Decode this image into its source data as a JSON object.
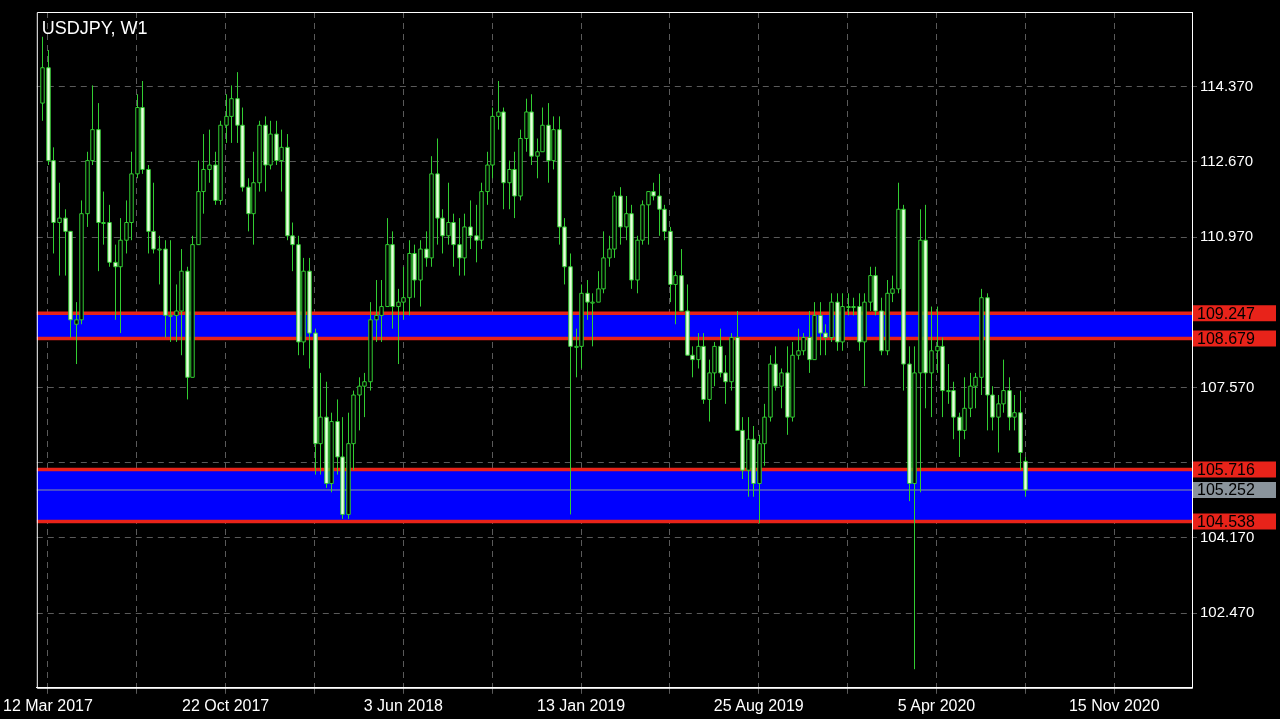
{
  "chart_data": {
    "type": "candlestick",
    "title": "USDJPY, W1",
    "x": [
      "2017-03-05",
      "2017-03-12",
      "2017-03-19",
      "2017-03-26",
      "2017-04-02",
      "2017-04-09",
      "2017-04-16",
      "2017-04-23",
      "2017-04-30",
      "2017-05-07",
      "2017-05-14",
      "2017-05-21",
      "2017-05-28",
      "2017-06-04",
      "2017-06-11",
      "2017-06-18",
      "2017-06-25",
      "2017-07-02",
      "2017-07-09",
      "2017-07-16",
      "2017-07-23",
      "2017-07-30",
      "2017-08-06",
      "2017-08-13",
      "2017-08-20",
      "2017-08-27",
      "2017-09-03",
      "2017-09-10",
      "2017-09-17",
      "2017-09-24",
      "2017-10-01",
      "2017-10-08",
      "2017-10-15",
      "2017-10-22",
      "2017-10-29",
      "2017-11-05",
      "2017-11-12",
      "2017-11-19",
      "2017-11-26",
      "2017-12-03",
      "2017-12-10",
      "2017-12-17",
      "2017-12-24",
      "2017-12-31",
      "2018-01-07",
      "2018-01-14",
      "2018-01-21",
      "2018-01-28",
      "2018-02-04",
      "2018-02-11",
      "2018-02-18",
      "2018-02-25",
      "2018-03-04",
      "2018-03-11",
      "2018-03-18",
      "2018-03-25",
      "2018-04-01",
      "2018-04-08",
      "2018-04-15",
      "2018-04-22",
      "2018-04-29",
      "2018-05-06",
      "2018-05-13",
      "2018-05-20",
      "2018-05-27",
      "2018-06-03",
      "2018-06-10",
      "2018-06-17",
      "2018-06-24",
      "2018-07-01",
      "2018-07-08",
      "2018-07-15",
      "2018-07-22",
      "2018-07-29",
      "2018-08-05",
      "2018-08-12",
      "2018-08-19",
      "2018-08-26",
      "2018-09-02",
      "2018-09-09",
      "2018-09-16",
      "2018-09-23",
      "2018-09-30",
      "2018-10-07",
      "2018-10-14",
      "2018-10-21",
      "2018-10-28",
      "2018-11-04",
      "2018-11-11",
      "2018-11-18",
      "2018-11-25",
      "2018-12-02",
      "2018-12-09",
      "2018-12-16",
      "2018-12-23",
      "2018-12-30",
      "2019-01-06",
      "2019-01-13",
      "2019-01-20",
      "2019-01-27",
      "2019-02-03",
      "2019-02-10",
      "2019-02-17",
      "2019-02-24",
      "2019-03-03",
      "2019-03-10",
      "2019-03-17",
      "2019-03-24",
      "2019-03-31",
      "2019-04-07",
      "2019-04-14",
      "2019-04-21",
      "2019-04-28",
      "2019-05-05",
      "2019-05-12",
      "2019-05-19",
      "2019-05-26",
      "2019-06-02",
      "2019-06-09",
      "2019-06-16",
      "2019-06-23",
      "2019-06-30",
      "2019-07-07",
      "2019-07-14",
      "2019-07-21",
      "2019-07-28",
      "2019-08-04",
      "2019-08-11",
      "2019-08-18",
      "2019-08-25",
      "2019-09-01",
      "2019-09-08",
      "2019-09-15",
      "2019-09-22",
      "2019-09-29",
      "2019-10-06",
      "2019-10-13",
      "2019-10-20",
      "2019-10-27",
      "2019-11-03",
      "2019-11-10",
      "2019-11-17",
      "2019-11-24",
      "2019-12-01",
      "2019-12-08",
      "2019-12-15",
      "2019-12-22",
      "2019-12-29",
      "2020-01-05",
      "2020-01-12",
      "2020-01-19",
      "2020-01-26",
      "2020-02-02",
      "2020-02-09",
      "2020-02-16",
      "2020-02-23",
      "2020-03-01",
      "2020-03-08",
      "2020-03-15",
      "2020-03-22",
      "2020-03-29",
      "2020-04-05",
      "2020-04-12",
      "2020-04-19",
      "2020-04-26",
      "2020-05-03",
      "2020-05-10",
      "2020-05-17",
      "2020-05-24",
      "2020-05-31",
      "2020-06-07",
      "2020-06-14",
      "2020-06-21",
      "2020-06-28",
      "2020-07-05",
      "2020-07-12",
      "2020-07-19",
      "2020-07-26"
    ],
    "ohlc": [
      [
        114.0,
        115.5,
        113.6,
        114.8
      ],
      [
        114.8,
        115.2,
        112.6,
        112.7
      ],
      [
        112.7,
        113.0,
        110.6,
        111.3
      ],
      [
        111.3,
        112.2,
        110.1,
        111.4
      ],
      [
        111.4,
        111.6,
        110.1,
        111.1
      ],
      [
        111.1,
        111.1,
        108.7,
        109.1
      ],
      [
        109.0,
        109.5,
        108.1,
        109.1
      ],
      [
        109.1,
        111.8,
        109.0,
        111.5
      ],
      [
        111.5,
        112.9,
        111.2,
        112.7
      ],
      [
        112.7,
        114.4,
        112.6,
        113.4
      ],
      [
        113.4,
        114.0,
        110.2,
        111.3
      ],
      [
        111.3,
        112.0,
        110.8,
        111.3
      ],
      [
        111.3,
        111.7,
        110.3,
        110.4
      ],
      [
        110.4,
        110.8,
        109.1,
        110.3
      ],
      [
        110.3,
        111.4,
        108.8,
        110.9
      ],
      [
        110.9,
        111.8,
        110.6,
        111.3
      ],
      [
        111.3,
        112.9,
        110.9,
        112.4
      ],
      [
        112.4,
        114.2,
        112.3,
        113.9
      ],
      [
        113.9,
        114.5,
        112.4,
        112.5
      ],
      [
        112.5,
        112.6,
        110.6,
        111.1
      ],
      [
        111.1,
        112.2,
        110.6,
        110.7
      ],
      [
        110.7,
        111.0,
        109.9,
        110.7
      ],
      [
        110.7,
        110.9,
        108.7,
        109.2
      ],
      [
        109.2,
        110.9,
        108.6,
        109.2
      ],
      [
        109.2,
        109.9,
        108.6,
        109.3
      ],
      [
        109.3,
        110.7,
        108.3,
        110.2
      ],
      [
        110.2,
        110.3,
        107.3,
        107.8
      ],
      [
        107.8,
        111.0,
        107.8,
        110.8
      ],
      [
        110.8,
        112.7,
        110.8,
        112.0
      ],
      [
        112.0,
        113.3,
        111.5,
        112.5
      ],
      [
        112.5,
        113.4,
        112.2,
        112.6
      ],
      [
        112.6,
        112.9,
        111.7,
        111.8
      ],
      [
        111.8,
        113.6,
        111.7,
        113.5
      ],
      [
        113.5,
        114.2,
        113.1,
        113.7
      ],
      [
        113.7,
        114.4,
        113.1,
        114.1
      ],
      [
        114.1,
        114.7,
        113.1,
        113.5
      ],
      [
        113.5,
        113.9,
        112.0,
        112.1
      ],
      [
        112.1,
        112.3,
        111.1,
        111.5
      ],
      [
        111.5,
        112.9,
        110.8,
        112.2
      ],
      [
        112.2,
        113.6,
        112.0,
        113.5
      ],
      [
        113.5,
        113.7,
        112.0,
        112.6
      ],
      [
        112.6,
        113.6,
        112.5,
        113.3
      ],
      [
        113.3,
        113.6,
        112.6,
        112.7
      ],
      [
        112.7,
        113.4,
        112.0,
        113.0
      ],
      [
        113.0,
        113.3,
        110.9,
        111.0
      ],
      [
        111.0,
        111.3,
        110.2,
        110.8
      ],
      [
        110.8,
        111.0,
        108.3,
        108.6
      ],
      [
        108.6,
        110.5,
        108.3,
        110.2
      ],
      [
        110.2,
        110.5,
        108.0,
        108.8
      ],
      [
        108.8,
        108.9,
        105.6,
        106.3
      ],
      [
        106.3,
        107.9,
        105.6,
        106.9
      ],
      [
        106.9,
        107.7,
        105.3,
        105.4
      ],
      [
        105.4,
        107.0,
        105.2,
        106.8
      ],
      [
        106.8,
        107.3,
        105.6,
        106.0
      ],
      [
        106.0,
        106.9,
        104.6,
        104.7
      ],
      [
        104.7,
        107.0,
        104.6,
        106.3
      ],
      [
        106.3,
        107.5,
        105.7,
        107.4
      ],
      [
        107.4,
        107.8,
        106.6,
        107.6
      ],
      [
        107.6,
        107.9,
        106.9,
        107.7
      ],
      [
        107.7,
        109.5,
        107.5,
        109.1
      ],
      [
        109.1,
        110.0,
        108.6,
        109.2
      ],
      [
        109.2,
        110.0,
        108.6,
        109.4
      ],
      [
        109.4,
        111.4,
        109.4,
        110.8
      ],
      [
        110.8,
        111.1,
        108.9,
        109.4
      ],
      [
        109.4,
        109.8,
        108.1,
        109.5
      ],
      [
        109.5,
        110.3,
        109.1,
        109.6
      ],
      [
        109.6,
        110.9,
        109.2,
        110.6
      ],
      [
        110.6,
        110.8,
        109.6,
        110.0
      ],
      [
        110.0,
        110.9,
        109.4,
        110.7
      ],
      [
        110.7,
        111.1,
        110.3,
        110.5
      ],
      [
        110.5,
        112.8,
        110.3,
        112.4
      ],
      [
        112.4,
        113.2,
        110.8,
        111.4
      ],
      [
        111.4,
        111.6,
        110.6,
        111.0
      ],
      [
        111.0,
        112.2,
        110.8,
        111.3
      ],
      [
        111.3,
        111.5,
        110.3,
        110.8
      ],
      [
        110.8,
        111.4,
        110.1,
        110.5
      ],
      [
        110.5,
        111.5,
        110.1,
        111.2
      ],
      [
        111.2,
        111.8,
        110.7,
        111.0
      ],
      [
        111.0,
        111.7,
        110.4,
        110.9
      ],
      [
        110.9,
        112.2,
        110.7,
        112.0
      ],
      [
        112.0,
        112.9,
        111.7,
        112.6
      ],
      [
        112.6,
        113.9,
        112.3,
        113.7
      ],
      [
        113.7,
        114.5,
        113.4,
        113.8
      ],
      [
        113.8,
        113.9,
        111.6,
        112.2
      ],
      [
        112.2,
        112.7,
        111.6,
        112.5
      ],
      [
        112.5,
        112.9,
        111.4,
        111.9
      ],
      [
        111.9,
        113.4,
        111.8,
        113.2
      ],
      [
        113.2,
        114.1,
        112.9,
        113.8
      ],
      [
        113.8,
        114.2,
        112.6,
        112.8
      ],
      [
        112.8,
        113.2,
        112.3,
        112.9
      ],
      [
        112.9,
        113.9,
        112.9,
        113.5
      ],
      [
        113.5,
        114.0,
        112.2,
        112.7
      ],
      [
        112.7,
        113.7,
        112.5,
        113.4
      ],
      [
        113.4,
        113.7,
        110.8,
        111.2
      ],
      [
        111.2,
        111.4,
        109.9,
        110.3
      ],
      [
        110.3,
        110.6,
        104.7,
        108.5
      ],
      [
        108.5,
        108.9,
        107.8,
        108.5
      ],
      [
        108.5,
        109.9,
        108.0,
        109.7
      ],
      [
        109.7,
        110.0,
        109.1,
        109.5
      ],
      [
        109.5,
        109.7,
        108.5,
        109.5
      ],
      [
        109.5,
        110.2,
        109.5,
        109.8
      ],
      [
        109.8,
        111.1,
        109.7,
        110.5
      ],
      [
        110.5,
        111.0,
        110.3,
        110.7
      ],
      [
        110.7,
        112.0,
        110.5,
        111.9
      ],
      [
        111.9,
        112.1,
        110.8,
        111.2
      ],
      [
        111.2,
        111.9,
        110.9,
        111.5
      ],
      [
        111.5,
        111.7,
        109.8,
        110.0
      ],
      [
        110.0,
        111.0,
        109.7,
        110.9
      ],
      [
        110.9,
        111.8,
        110.8,
        111.7
      ],
      [
        111.7,
        112.0,
        110.8,
        112.0
      ],
      [
        112.0,
        112.2,
        111.8,
        111.9
      ],
      [
        111.9,
        112.4,
        111.0,
        111.6
      ],
      [
        111.6,
        111.7,
        110.9,
        111.1
      ],
      [
        111.1,
        111.2,
        109.5,
        109.9
      ],
      [
        109.9,
        110.2,
        109.0,
        110.1
      ],
      [
        110.1,
        110.7,
        109.3,
        109.3
      ],
      [
        109.3,
        109.9,
        108.3,
        108.3
      ],
      [
        108.3,
        108.5,
        107.8,
        108.2
      ],
      [
        108.2,
        108.8,
        108.0,
        108.5
      ],
      [
        108.5,
        108.8,
        107.2,
        107.3
      ],
      [
        107.3,
        108.2,
        106.8,
        107.9
      ],
      [
        107.9,
        108.6,
        107.6,
        108.5
      ],
      [
        108.5,
        108.9,
        107.8,
        107.9
      ],
      [
        107.9,
        108.3,
        107.2,
        107.7
      ],
      [
        107.7,
        108.8,
        107.5,
        108.7
      ],
      [
        108.7,
        109.3,
        106.6,
        106.6
      ],
      [
        106.6,
        106.9,
        105.5,
        105.7
      ],
      [
        105.7,
        106.9,
        105.1,
        106.4
      ],
      [
        106.4,
        106.7,
        105.1,
        105.4
      ],
      [
        105.4,
        106.5,
        104.5,
        106.3
      ],
      [
        106.3,
        107.2,
        105.8,
        106.9
      ],
      [
        106.9,
        108.3,
        106.8,
        108.1
      ],
      [
        108.1,
        108.5,
        107.5,
        107.6
      ],
      [
        107.6,
        108.0,
        107.1,
        107.9
      ],
      [
        107.9,
        108.5,
        106.5,
        106.9
      ],
      [
        106.9,
        108.6,
        106.8,
        108.3
      ],
      [
        108.3,
        108.9,
        108.2,
        108.4
      ],
      [
        108.4,
        108.8,
        108.3,
        108.7
      ],
      [
        108.7,
        109.3,
        107.9,
        108.2
      ],
      [
        108.2,
        109.5,
        108.2,
        109.2
      ],
      [
        109.2,
        109.5,
        108.3,
        108.8
      ],
      [
        108.8,
        109.0,
        108.3,
        108.7
      ],
      [
        108.7,
        109.7,
        108.6,
        109.5
      ],
      [
        109.5,
        109.7,
        108.4,
        108.6
      ],
      [
        108.6,
        109.7,
        108.4,
        109.4
      ],
      [
        109.4,
        109.7,
        109.2,
        109.4
      ],
      [
        109.4,
        109.6,
        109.2,
        109.4
      ],
      [
        109.4,
        109.7,
        108.4,
        108.6
      ],
      [
        108.6,
        109.7,
        107.6,
        109.5
      ],
      [
        109.5,
        110.3,
        109.3,
        110.1
      ],
      [
        110.1,
        110.3,
        109.2,
        109.3
      ],
      [
        109.3,
        109.6,
        108.3,
        108.4
      ],
      [
        108.4,
        110.0,
        108.3,
        109.7
      ],
      [
        109.7,
        110.1,
        109.5,
        109.8
      ],
      [
        109.8,
        112.2,
        109.7,
        111.6
      ],
      [
        111.6,
        111.7,
        107.5,
        108.1
      ],
      [
        108.1,
        108.5,
        105.0,
        105.4
      ],
      [
        105.4,
        108.5,
        101.2,
        107.9
      ],
      [
        107.9,
        111.6,
        105.2,
        110.9
      ],
      [
        110.9,
        111.7,
        107.1,
        107.9
      ],
      [
        107.9,
        109.4,
        106.9,
        108.4
      ],
      [
        108.4,
        109.4,
        107.9,
        108.5
      ],
      [
        108.5,
        108.7,
        106.9,
        107.5
      ],
      [
        107.5,
        108.1,
        107.2,
        107.5
      ],
      [
        107.5,
        107.7,
        106.4,
        106.9
      ],
      [
        106.9,
        107.0,
        106.0,
        106.6
      ],
      [
        106.6,
        107.8,
        106.4,
        107.1
      ],
      [
        107.1,
        107.9,
        106.9,
        107.6
      ],
      [
        107.6,
        107.9,
        107.1,
        107.8
      ],
      [
        107.8,
        109.8,
        107.4,
        109.6
      ],
      [
        109.6,
        109.7,
        106.6,
        107.4
      ],
      [
        107.4,
        107.6,
        106.6,
        106.9
      ],
      [
        106.9,
        107.4,
        106.1,
        107.2
      ],
      [
        107.2,
        108.2,
        107.0,
        107.5
      ],
      [
        107.5,
        107.8,
        106.6,
        106.9
      ],
      [
        106.9,
        107.4,
        106.6,
        107.0
      ],
      [
        107.0,
        107.5,
        105.7,
        106.1
      ],
      [
        105.9,
        106.0,
        105.1,
        105.252
      ]
    ],
    "xlim": [
      "2017-02-26",
      "2021-02-21"
    ],
    "xticks": [
      {
        "value": "2017-03-12",
        "label": "12 Mar 2017"
      },
      {
        "value": "2017-07-02",
        "label": null
      },
      {
        "value": "2017-10-22",
        "label": "22 Oct 2017"
      },
      {
        "value": "2018-02-11",
        "label": null
      },
      {
        "value": "2018-06-03",
        "label": "3 Jun 2018"
      },
      {
        "value": "2018-09-23",
        "label": null
      },
      {
        "value": "2019-01-13",
        "label": "13 Jan 2019"
      },
      {
        "value": "2019-05-05",
        "label": null
      },
      {
        "value": "2019-08-25",
        "label": "25 Aug 2019"
      },
      {
        "value": "2019-12-15",
        "label": null
      },
      {
        "value": "2020-04-05",
        "label": "5 Apr 2020"
      },
      {
        "value": "2020-07-26",
        "label": null
      },
      {
        "value": "2020-11-15",
        "label": "15 Nov 2020"
      }
    ],
    "ylim": [
      100.78,
      116.06
    ],
    "yticks": [
      {
        "value": 102.47,
        "label": "102.470"
      },
      {
        "value": 104.17,
        "label": "104.170"
      },
      {
        "value": 105.87,
        "label": null
      },
      {
        "value": 107.57,
        "label": "107.570"
      },
      {
        "value": 109.27,
        "label": null
      },
      {
        "value": 110.97,
        "label": "110.970"
      },
      {
        "value": 112.67,
        "label": "112.670"
      },
      {
        "value": 114.37,
        "label": "114.370"
      }
    ],
    "grid": true,
    "bands": [
      {
        "axis": "y",
        "from": 108.679,
        "to": 109.247,
        "color": "#0000ff"
      },
      {
        "axis": "y",
        "from": 104.538,
        "to": 105.716,
        "color": "#0000ff"
      }
    ],
    "ref_lines": [
      {
        "axis": "y",
        "value": 109.247,
        "label": "109.247",
        "color": "#e8231a"
      },
      {
        "axis": "y",
        "value": 108.679,
        "label": "108.679",
        "color": "#e8231a"
      },
      {
        "axis": "y",
        "value": 105.716,
        "label": "105.716",
        "color": "#e8231a"
      },
      {
        "axis": "y",
        "value": 105.252,
        "label": "105.252",
        "color": "#8a949c"
      },
      {
        "axis": "y",
        "value": 104.538,
        "label": "104.538",
        "color": "#e8231a"
      }
    ]
  }
}
